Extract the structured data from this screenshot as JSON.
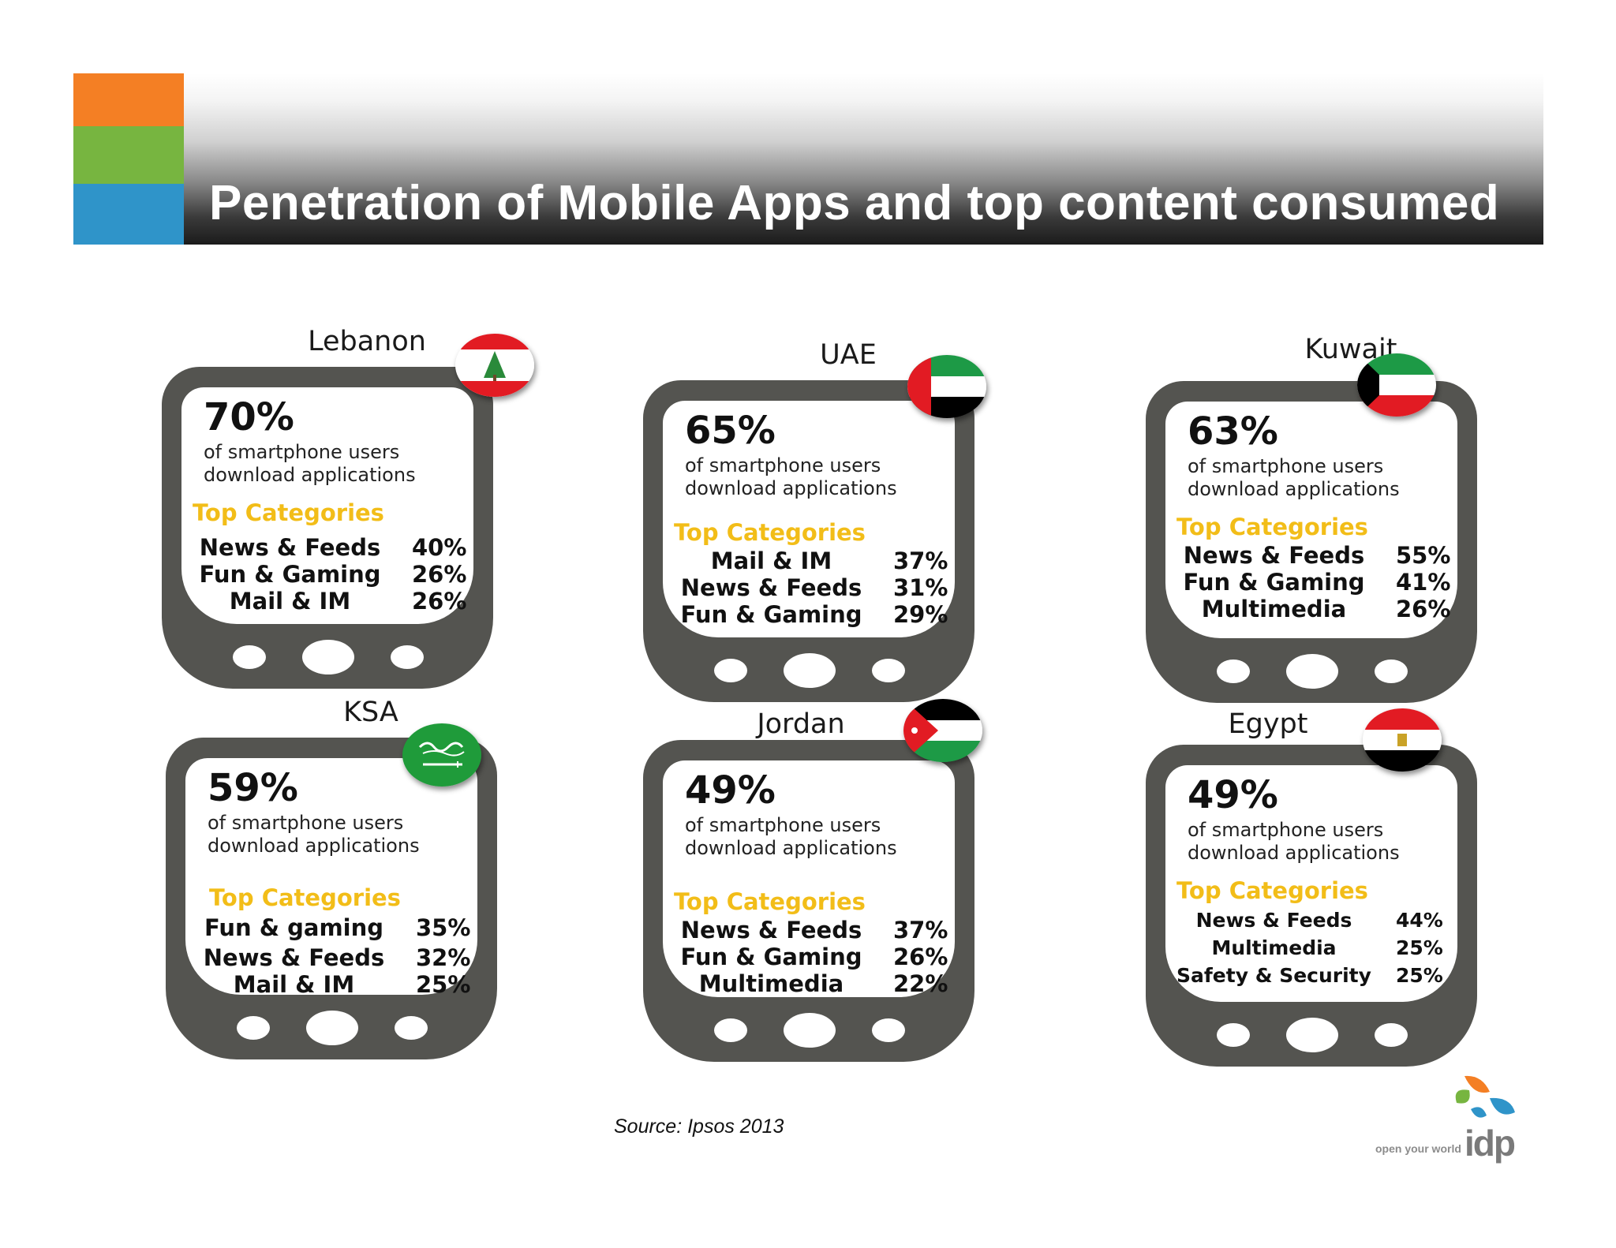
{
  "header": {
    "title": "Penetration of Mobile Apps and top content consumed",
    "accent_colors": [
      "#f47f24",
      "#77b540",
      "#2f94c9"
    ]
  },
  "common": {
    "description_line1": "of smartphone users",
    "description_line2": "download applications",
    "top_categories_label": "Top Categories"
  },
  "countries": [
    {
      "name": "Lebanon",
      "flag": "lebanon-flag-icon",
      "penetration": "70%",
      "categories": [
        {
          "name": "News & Feeds",
          "value": "40%"
        },
        {
          "name": "Fun & Gaming",
          "value": "26%"
        },
        {
          "name": "Mail & IM",
          "value": "26%"
        }
      ]
    },
    {
      "name": "UAE",
      "flag": "uae-flag-icon",
      "penetration": "65%",
      "categories": [
        {
          "name": "Mail & IM",
          "value": "37%"
        },
        {
          "name": "News & Feeds",
          "value": "31%"
        },
        {
          "name": "Fun & Gaming",
          "value": "29%"
        }
      ]
    },
    {
      "name": "Kuwait",
      "flag": "kuwait-flag-icon",
      "penetration": "63%",
      "categories": [
        {
          "name": "News & Feeds",
          "value": "55%"
        },
        {
          "name": "Fun & Gaming",
          "value": "41%"
        },
        {
          "name": "Multimedia",
          "value": "26%"
        }
      ]
    },
    {
      "name": "KSA",
      "flag": "ksa-flag-icon",
      "penetration": "59%",
      "categories": [
        {
          "name": "Fun & gaming",
          "value": "35%"
        },
        {
          "name": "News & Feeds",
          "value": "32%"
        },
        {
          "name": "Mail & IM",
          "value": "25%"
        }
      ]
    },
    {
      "name": "Jordan",
      "flag": "jordan-flag-icon",
      "penetration": "49%",
      "categories": [
        {
          "name": "News & Feeds",
          "value": "37%"
        },
        {
          "name": "Fun & Gaming",
          "value": "26%"
        },
        {
          "name": "Multimedia",
          "value": "22%"
        }
      ]
    },
    {
      "name": "Egypt",
      "flag": "egypt-flag-icon",
      "penetration": "49%",
      "categories": [
        {
          "name": "News & Feeds",
          "value": "44%"
        },
        {
          "name": "Multimedia",
          "value": "25%"
        },
        {
          "name": "Safety & Security",
          "value": "25%"
        }
      ]
    }
  ],
  "footer": {
    "source": "Source: Ipsos 2013",
    "logo_tagline": "open your world",
    "logo_word": "idp"
  }
}
